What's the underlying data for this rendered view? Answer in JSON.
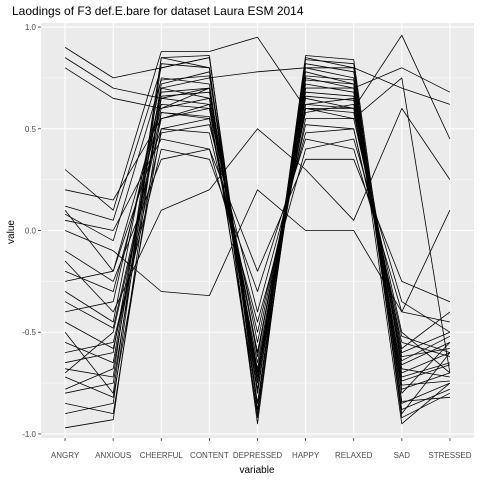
{
  "chart_data": {
    "type": "line",
    "title": "Laodings of F3 def.E.bare for dataset Laura ESM 2014",
    "xlabel": "variable",
    "ylabel": "value",
    "categories": [
      "ANGRY",
      "ANXIOUS",
      "CHEERFUL",
      "CONTENT",
      "DEPRESSED",
      "HAPPY",
      "RELAXED",
      "SAD",
      "STRESSED"
    ],
    "ylim": [
      -1.02,
      1.02
    ],
    "yticks": [
      -1.0,
      -0.5,
      0.0,
      0.5,
      1.0
    ],
    "ytick_labels": [
      "-1.0",
      "-0.5",
      "0.0",
      "0.5",
      "1.0"
    ],
    "grid": true,
    "panel_background": "#ebebeb",
    "line_color": "#000000",
    "series": [
      {
        "values": [
          0.9,
          0.75,
          0.8,
          0.85,
          -0.8,
          0.8,
          0.75,
          -0.9,
          -0.6
        ]
      },
      {
        "values": [
          0.85,
          0.7,
          0.65,
          0.7,
          -0.75,
          0.7,
          0.7,
          0.8,
          0.68
        ]
      },
      {
        "values": [
          0.8,
          0.65,
          0.6,
          0.65,
          -0.7,
          0.6,
          0.55,
          0.75,
          -0.7
        ]
      },
      {
        "values": [
          0.3,
          0.1,
          0.88,
          0.88,
          0.95,
          0.6,
          0.6,
          0.96,
          0.45
        ]
      },
      {
        "values": [
          -0.97,
          -0.93,
          0.7,
          0.75,
          0.78,
          0.8,
          0.8,
          0.7,
          0.62
        ]
      },
      {
        "values": [
          -0.7,
          -0.5,
          0.55,
          0.6,
          -0.85,
          0.7,
          0.7,
          -0.95,
          -0.75
        ]
      },
      {
        "values": [
          -0.65,
          -0.6,
          0.7,
          0.65,
          -0.9,
          0.75,
          0.7,
          -0.8,
          -0.55
        ]
      },
      {
        "values": [
          0.1,
          -0.2,
          0.5,
          0.55,
          -0.6,
          0.55,
          0.55,
          -0.5,
          -0.7
        ]
      },
      {
        "values": [
          -0.2,
          -0.3,
          0.6,
          0.7,
          -0.7,
          0.65,
          0.6,
          -0.6,
          -0.5
        ]
      },
      {
        "values": [
          -0.5,
          -0.8,
          0.85,
          0.8,
          -0.95,
          0.85,
          0.8,
          -0.85,
          -0.75
        ]
      },
      {
        "values": [
          -0.8,
          -0.75,
          0.65,
          0.62,
          -0.6,
          0.62,
          0.65,
          -0.7,
          -0.6
        ]
      },
      {
        "values": [
          0.05,
          0.0,
          0.45,
          0.4,
          -0.45,
          0.4,
          0.45,
          -0.35,
          -0.5
        ]
      },
      {
        "values": [
          -0.3,
          -0.45,
          0.75,
          0.72,
          -0.8,
          0.78,
          0.72,
          -0.78,
          -0.7
        ]
      },
      {
        "values": [
          -0.6,
          -0.55,
          0.4,
          0.35,
          -0.3,
          0.45,
          0.4,
          -0.4,
          -0.45
        ]
      },
      {
        "values": [
          0.12,
          0.05,
          0.8,
          0.85,
          -0.85,
          0.82,
          0.78,
          -0.88,
          -0.78
        ]
      },
      {
        "values": [
          -0.85,
          -0.9,
          0.58,
          0.55,
          -0.65,
          0.6,
          0.58,
          -0.62,
          -0.58
        ]
      },
      {
        "values": [
          -0.4,
          -0.35,
          0.68,
          0.7,
          -0.75,
          0.72,
          0.68,
          -0.72,
          -0.65
        ]
      },
      {
        "values": [
          -0.72,
          -0.82,
          0.5,
          0.48,
          -0.5,
          0.52,
          0.5,
          -0.55,
          -0.62
        ]
      },
      {
        "values": [
          0.0,
          -0.1,
          -0.3,
          -0.32,
          0.2,
          0.0,
          0.0,
          -0.4,
          0.1
        ]
      },
      {
        "values": [
          -0.15,
          -0.4,
          0.1,
          0.2,
          0.5,
          0.3,
          0.05,
          0.6,
          0.25
        ]
      },
      {
        "values": [
          -0.55,
          -0.65,
          0.72,
          0.78,
          -0.72,
          0.76,
          0.74,
          -0.68,
          -0.72
        ]
      },
      {
        "values": [
          -0.25,
          -0.2,
          0.62,
          0.6,
          -0.55,
          0.58,
          0.62,
          -0.58,
          -0.4
        ]
      },
      {
        "values": [
          -0.9,
          -0.85,
          0.82,
          0.8,
          -0.92,
          0.84,
          0.82,
          -0.92,
          -0.8
        ]
      },
      {
        "values": [
          0.2,
          0.15,
          0.55,
          0.62,
          -0.62,
          0.66,
          0.64,
          -0.66,
          -0.55
        ]
      },
      {
        "values": [
          -0.45,
          -0.58,
          0.48,
          0.52,
          -0.4,
          0.48,
          0.5,
          -0.52,
          -0.6
        ]
      },
      {
        "values": [
          -0.68,
          -0.72,
          0.85,
          0.86,
          -0.88,
          0.86,
          0.84,
          -0.84,
          -0.82
        ]
      },
      {
        "values": [
          -0.1,
          -0.25,
          0.35,
          0.4,
          -0.2,
          0.35,
          0.35,
          -0.25,
          -0.35
        ]
      },
      {
        "values": [
          -0.78,
          -0.68,
          0.66,
          0.68,
          -0.78,
          0.68,
          0.66,
          -0.74,
          -0.66
        ]
      },
      {
        "values": [
          -0.35,
          -0.48,
          0.58,
          0.56,
          -0.68,
          0.62,
          0.6,
          -0.64,
          -0.52
        ]
      },
      {
        "values": [
          0.08,
          -0.05,
          0.74,
          0.76,
          -0.74,
          0.74,
          0.72,
          -0.76,
          -0.74
        ]
      }
    ]
  }
}
